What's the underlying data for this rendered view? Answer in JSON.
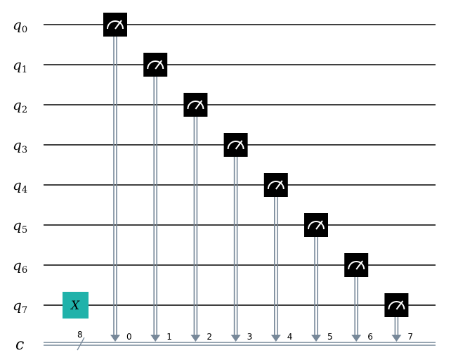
{
  "circuit": {
    "qubits": [
      {
        "name": "q",
        "index": "0"
      },
      {
        "name": "q",
        "index": "1"
      },
      {
        "name": "q",
        "index": "2"
      },
      {
        "name": "q",
        "index": "3"
      },
      {
        "name": "q",
        "index": "4"
      },
      {
        "name": "q",
        "index": "5"
      },
      {
        "name": "q",
        "index": "6"
      },
      {
        "name": "q",
        "index": "7"
      }
    ],
    "classical_register": {
      "name": "c",
      "width": "8"
    },
    "gates": [
      {
        "type": "x",
        "label": "X",
        "qubit": 7
      }
    ],
    "measurements": [
      {
        "qubit": 0,
        "clbit": "0"
      },
      {
        "qubit": 1,
        "clbit": "1"
      },
      {
        "qubit": 2,
        "clbit": "2"
      },
      {
        "qubit": 3,
        "clbit": "3"
      },
      {
        "qubit": 4,
        "clbit": "4"
      },
      {
        "qubit": 5,
        "clbit": "5"
      },
      {
        "qubit": 6,
        "clbit": "6"
      },
      {
        "qubit": 7,
        "clbit": "7"
      }
    ],
    "colors": {
      "wire": "#000000",
      "classical_wire": "#778899",
      "x_gate": "#20b2aa",
      "measure_box": "#000000",
      "measure_symbol": "#ffffff"
    }
  }
}
